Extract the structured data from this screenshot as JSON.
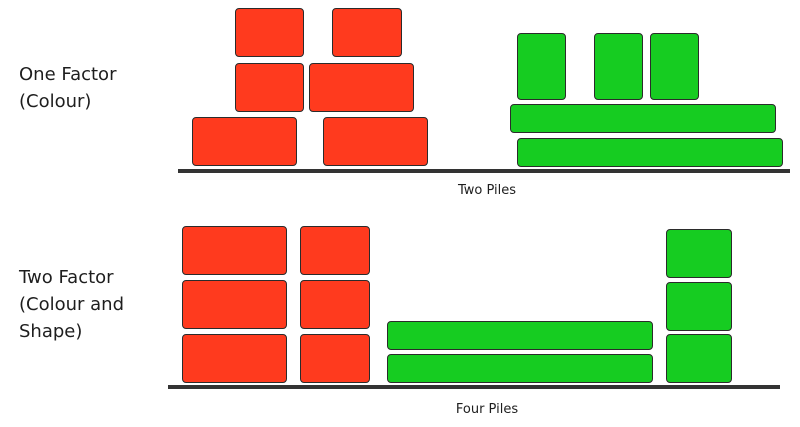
{
  "colors": {
    "red": "#ff3a1e",
    "green": "#16cc21",
    "ground": "#333333",
    "outline": "#2b2b2b"
  },
  "rows": [
    {
      "label_lines": [
        "One Factor",
        "(Colour)"
      ],
      "caption": "Two Piles"
    },
    {
      "label_lines": [
        "Two Factor",
        "(Colour and",
        "Shape)"
      ],
      "caption": "Four Piles"
    }
  ]
}
